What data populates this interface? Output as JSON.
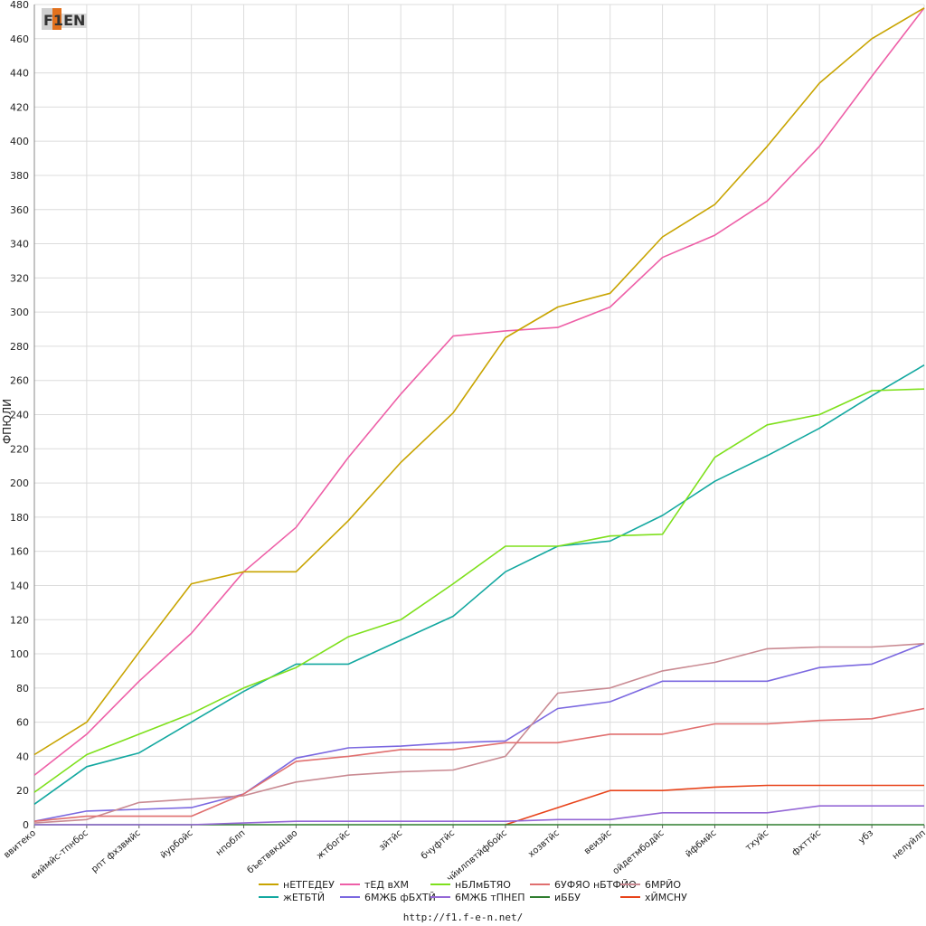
{
  "logo": {
    "text": "F1EN",
    "accent": "#e2711d"
  },
  "footer": {
    "url": "http://f1.f-e-n.net/"
  },
  "chart_data": {
    "type": "line",
    "ylabel": "ФПЮЛИ",
    "ylim": [
      0,
      480
    ],
    "ystep": 20,
    "grid": true,
    "legend_position": "bottom",
    "categories": [
      "ввитеко",
      "еиймйс-тпнбос",
      "рпт фхзвмйс",
      "йурбойс",
      "нпоблп",
      "бъетввкдцво",
      "жтбогйс",
      "зйтйс",
      "бчуфтйс",
      "чйилпвтйфбойс",
      "хозвтйс",
      "веизйс",
      "ойдетмбодйс",
      "йфбмйс",
      "тхуйс",
      "фхттйс",
      "убз",
      "нелуйлп"
    ],
    "series": [
      {
        "name": "нЕТГЕДЕУ",
        "color": "#c8a400",
        "values": [
          41,
          60,
          101,
          141,
          148,
          148,
          178,
          212,
          241,
          285,
          303,
          311,
          344,
          363,
          397,
          434,
          460,
          478
        ]
      },
      {
        "name": "тЕД вХМ",
        "color": "#ee5fa7",
        "values": [
          29,
          53,
          84,
          112,
          148,
          174,
          215,
          252,
          286,
          289,
          291,
          303,
          332,
          345,
          365,
          397,
          438,
          478
        ]
      },
      {
        "name": "нБЛмБТЯО",
        "color": "#7ee01c",
        "values": [
          19,
          41,
          53,
          65,
          80,
          92,
          110,
          120,
          141,
          163,
          163,
          169,
          170,
          215,
          234,
          240,
          254,
          255
        ]
      },
      {
        "name": "6УФЯО нБТФЙО",
        "color": "#e06f6f",
        "values": [
          2,
          5,
          5,
          5,
          18,
          37,
          40,
          44,
          44,
          48,
          48,
          53,
          53,
          59,
          59,
          61,
          62,
          68
        ]
      },
      {
        "name": "6МРЙО",
        "color": "#c98a92",
        "values": [
          1,
          3,
          13,
          15,
          17,
          25,
          29,
          31,
          32,
          40,
          77,
          80,
          90,
          95,
          103,
          104,
          104,
          106
        ]
      },
      {
        "name": "жЕТБТЙ",
        "color": "#13a8a0",
        "values": [
          12,
          34,
          42,
          60,
          78,
          94,
          94,
          108,
          122,
          148,
          163,
          166,
          181,
          201,
          216,
          232,
          251,
          269
        ]
      },
      {
        "name": "6МЖБ фБХТЙ",
        "color": "#7b68e0",
        "values": [
          2,
          8,
          9,
          10,
          18,
          39,
          45,
          46,
          48,
          49,
          68,
          72,
          84,
          84,
          84,
          92,
          94,
          106
        ]
      },
      {
        "name": "6МЖБ тПНЕП",
        "color": "#9467d6",
        "values": [
          0,
          0,
          0,
          0,
          1,
          2,
          2,
          2,
          2,
          2,
          3,
          3,
          7,
          7,
          7,
          11,
          11,
          11
        ]
      },
      {
        "name": "иББУ",
        "color": "#2f7d2f",
        "values": [
          0,
          0,
          0,
          0,
          0,
          0,
          0,
          0,
          0,
          0,
          0,
          0,
          0,
          0,
          0,
          0,
          0,
          0
        ]
      },
      {
        "name": "хЙМСНУ",
        "color": "#e8431a",
        "values": [
          null,
          null,
          null,
          null,
          null,
          null,
          null,
          null,
          null,
          0,
          10,
          20,
          20,
          22,
          23,
          23,
          23,
          23
        ]
      }
    ]
  }
}
